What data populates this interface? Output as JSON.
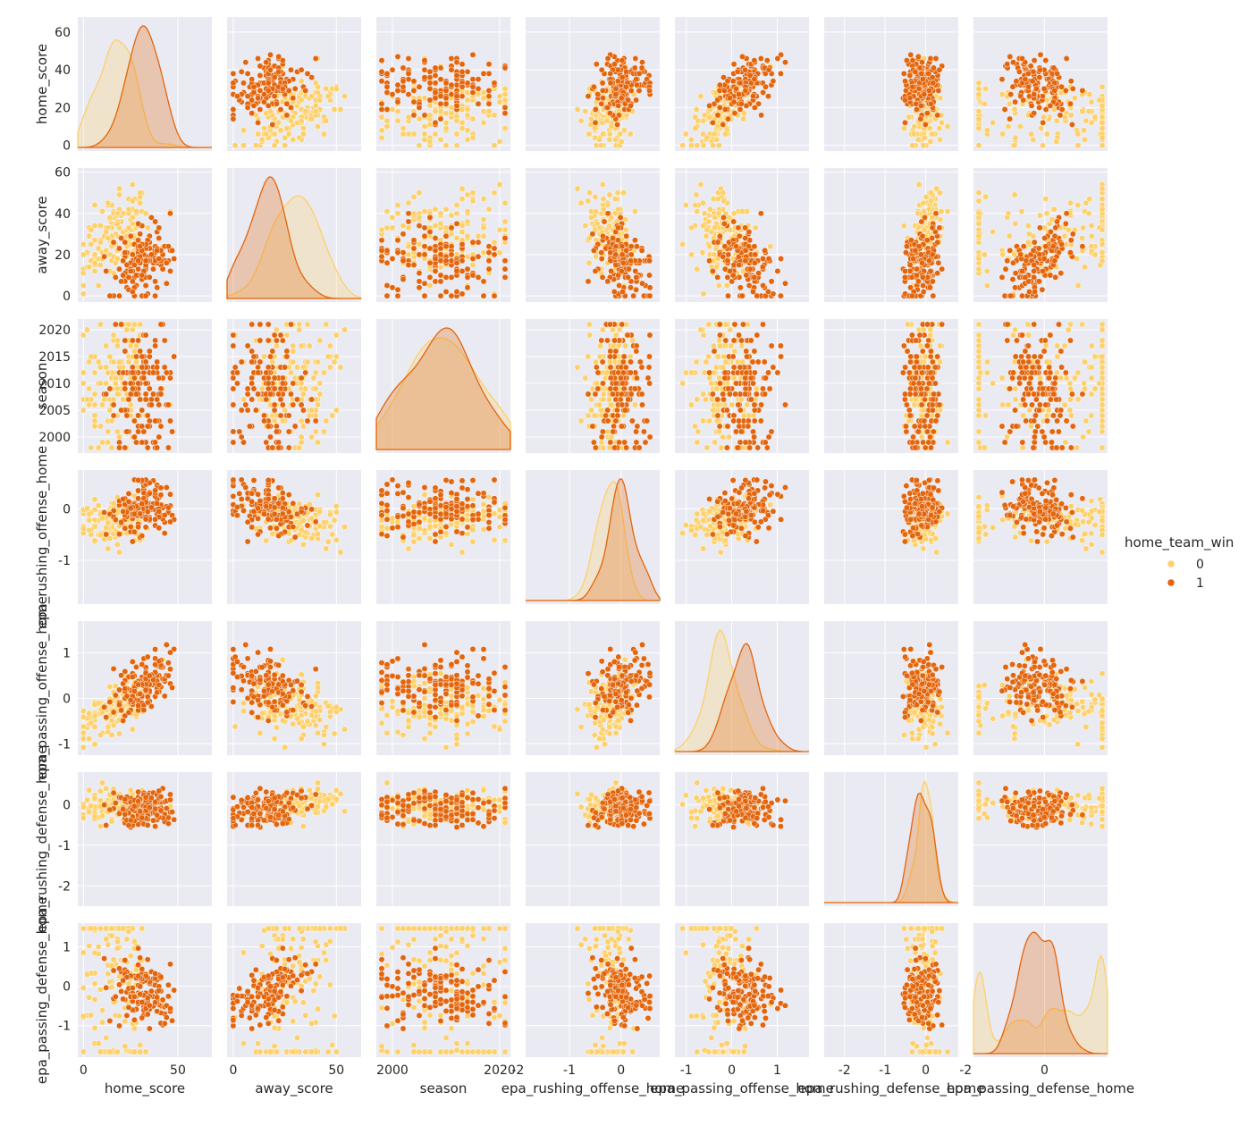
{
  "chart_data": {
    "type": "scatter",
    "kind": "pairplot",
    "variables": [
      "home_score",
      "away_score",
      "season",
      "epa_rushing_offense_home",
      "epa_passing_offense_home",
      "epa_rushing_defense_home",
      "epa_passing_defense_home"
    ],
    "axis_labels": [
      "home_score",
      "away_score",
      "season",
      "epa_rushing_offense_home",
      "epa_passing_offense_home",
      "epa_rushing_defense_home",
      "epa_passing_defense_home"
    ],
    "ranges": [
      [
        -3,
        68
      ],
      [
        -3,
        62
      ],
      [
        1997,
        2022
      ],
      [
        -1.85,
        0.75
      ],
      [
        -1.25,
        1.7
      ],
      [
        -2.5,
        0.8
      ],
      [
        -1.8,
        1.6
      ]
    ],
    "ticks": [
      [
        "0",
        "20",
        "40",
        "60"
      ],
      [
        "0",
        "20",
        "40",
        "60"
      ],
      [
        "2000",
        "2005",
        "2010",
        "2015",
        "2020"
      ],
      [
        "-1",
        "0"
      ],
      [
        "-1",
        "0",
        "1"
      ],
      [
        "-2",
        "-1",
        "0"
      ],
      [
        "-1",
        "0",
        "1"
      ]
    ],
    "xticks": [
      [
        "0",
        "50"
      ],
      [
        "0",
        "50"
      ],
      [
        "2000",
        "2020"
      ],
      [
        "-2",
        "-1",
        "0"
      ],
      [
        "-1",
        "0",
        "1"
      ],
      [
        "-2",
        "-1",
        "0"
      ],
      [
        "-2",
        "0"
      ]
    ],
    "hue": "home_team_win",
    "legend": {
      "title": "home_team_win",
      "placement": "right",
      "entries": [
        "0",
        "1"
      ]
    },
    "colors": {
      "0": "#fdd06a",
      "1": "#e3650c",
      "background": "#eaeaf2",
      "grid": "#ffffff"
    },
    "series": [
      {
        "label": "0",
        "means": [
          17,
          30,
          2009.5,
          -0.22,
          -0.2,
          -0.02,
          0.25
        ],
        "sds": [
          9,
          10,
          6.5,
          0.25,
          0.35,
          0.18,
          0.35
        ]
      },
      {
        "label": "1",
        "means": [
          31,
          16,
          2009.5,
          -0.02,
          0.25,
          -0.12,
          -0.2
        ],
        "sds": [
          9,
          9,
          6.5,
          0.25,
          0.33,
          0.22,
          0.33
        ]
      }
    ],
    "correlations": {
      "0": [
        [
          1,
          0.45,
          0,
          0.3,
          0.55,
          0.05,
          -0.35
        ],
        [
          0.45,
          1,
          0,
          -0.25,
          -0.35,
          0.35,
          0.6
        ],
        [
          0,
          0,
          1,
          0,
          0,
          0,
          0
        ],
        [
          0.3,
          -0.25,
          0,
          1,
          0.2,
          0.1,
          -0.25
        ],
        [
          0.55,
          -0.35,
          0,
          0.2,
          1,
          0,
          -0.1
        ],
        [
          0.05,
          0.35,
          0,
          0.1,
          0,
          1,
          0.1
        ],
        [
          -0.35,
          0.6,
          0,
          -0.25,
          -0.1,
          0.1,
          1
        ]
      ],
      "1": [
        [
          1,
          0.4,
          0,
          0.25,
          0.5,
          -0.05,
          -0.3
        ],
        [
          0.4,
          1,
          0,
          -0.2,
          -0.3,
          0.3,
          0.55
        ],
        [
          0,
          0,
          1,
          0,
          0,
          0,
          0
        ],
        [
          0.25,
          -0.2,
          0,
          1,
          0.15,
          0.05,
          -0.2
        ],
        [
          0.5,
          -0.3,
          0,
          0.15,
          1,
          -0.05,
          -0.1
        ],
        [
          -0.05,
          0.3,
          0,
          0.05,
          -0.05,
          1,
          0.1
        ],
        [
          -0.3,
          0.55,
          0,
          -0.2,
          -0.1,
          0.1,
          1
        ]
      ]
    },
    "points_per_series": 140,
    "grid": true
  }
}
